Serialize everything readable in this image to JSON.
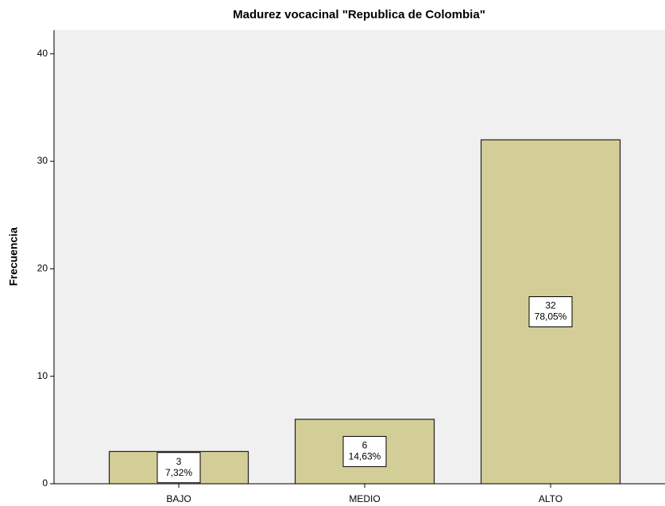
{
  "chart_data": {
    "type": "bar",
    "title": "Madurez vocacinal \"Republica de Colombia\"",
    "y_label": "Frecuencia",
    "categories": [
      "BAJO",
      "MEDIO",
      "ALTO"
    ],
    "values": [
      3,
      6,
      32
    ],
    "percentages": {
      "values": [
        7.32,
        14.63,
        78.05
      ],
      "value_labels": [
        "7,32%",
        "14,63%",
        "78,05%"
      ]
    },
    "color": "#d3ce97",
    "ylim": [
      0,
      42.2
    ],
    "yticks": [
      0,
      10,
      20,
      30,
      40
    ],
    "grid": false
  }
}
